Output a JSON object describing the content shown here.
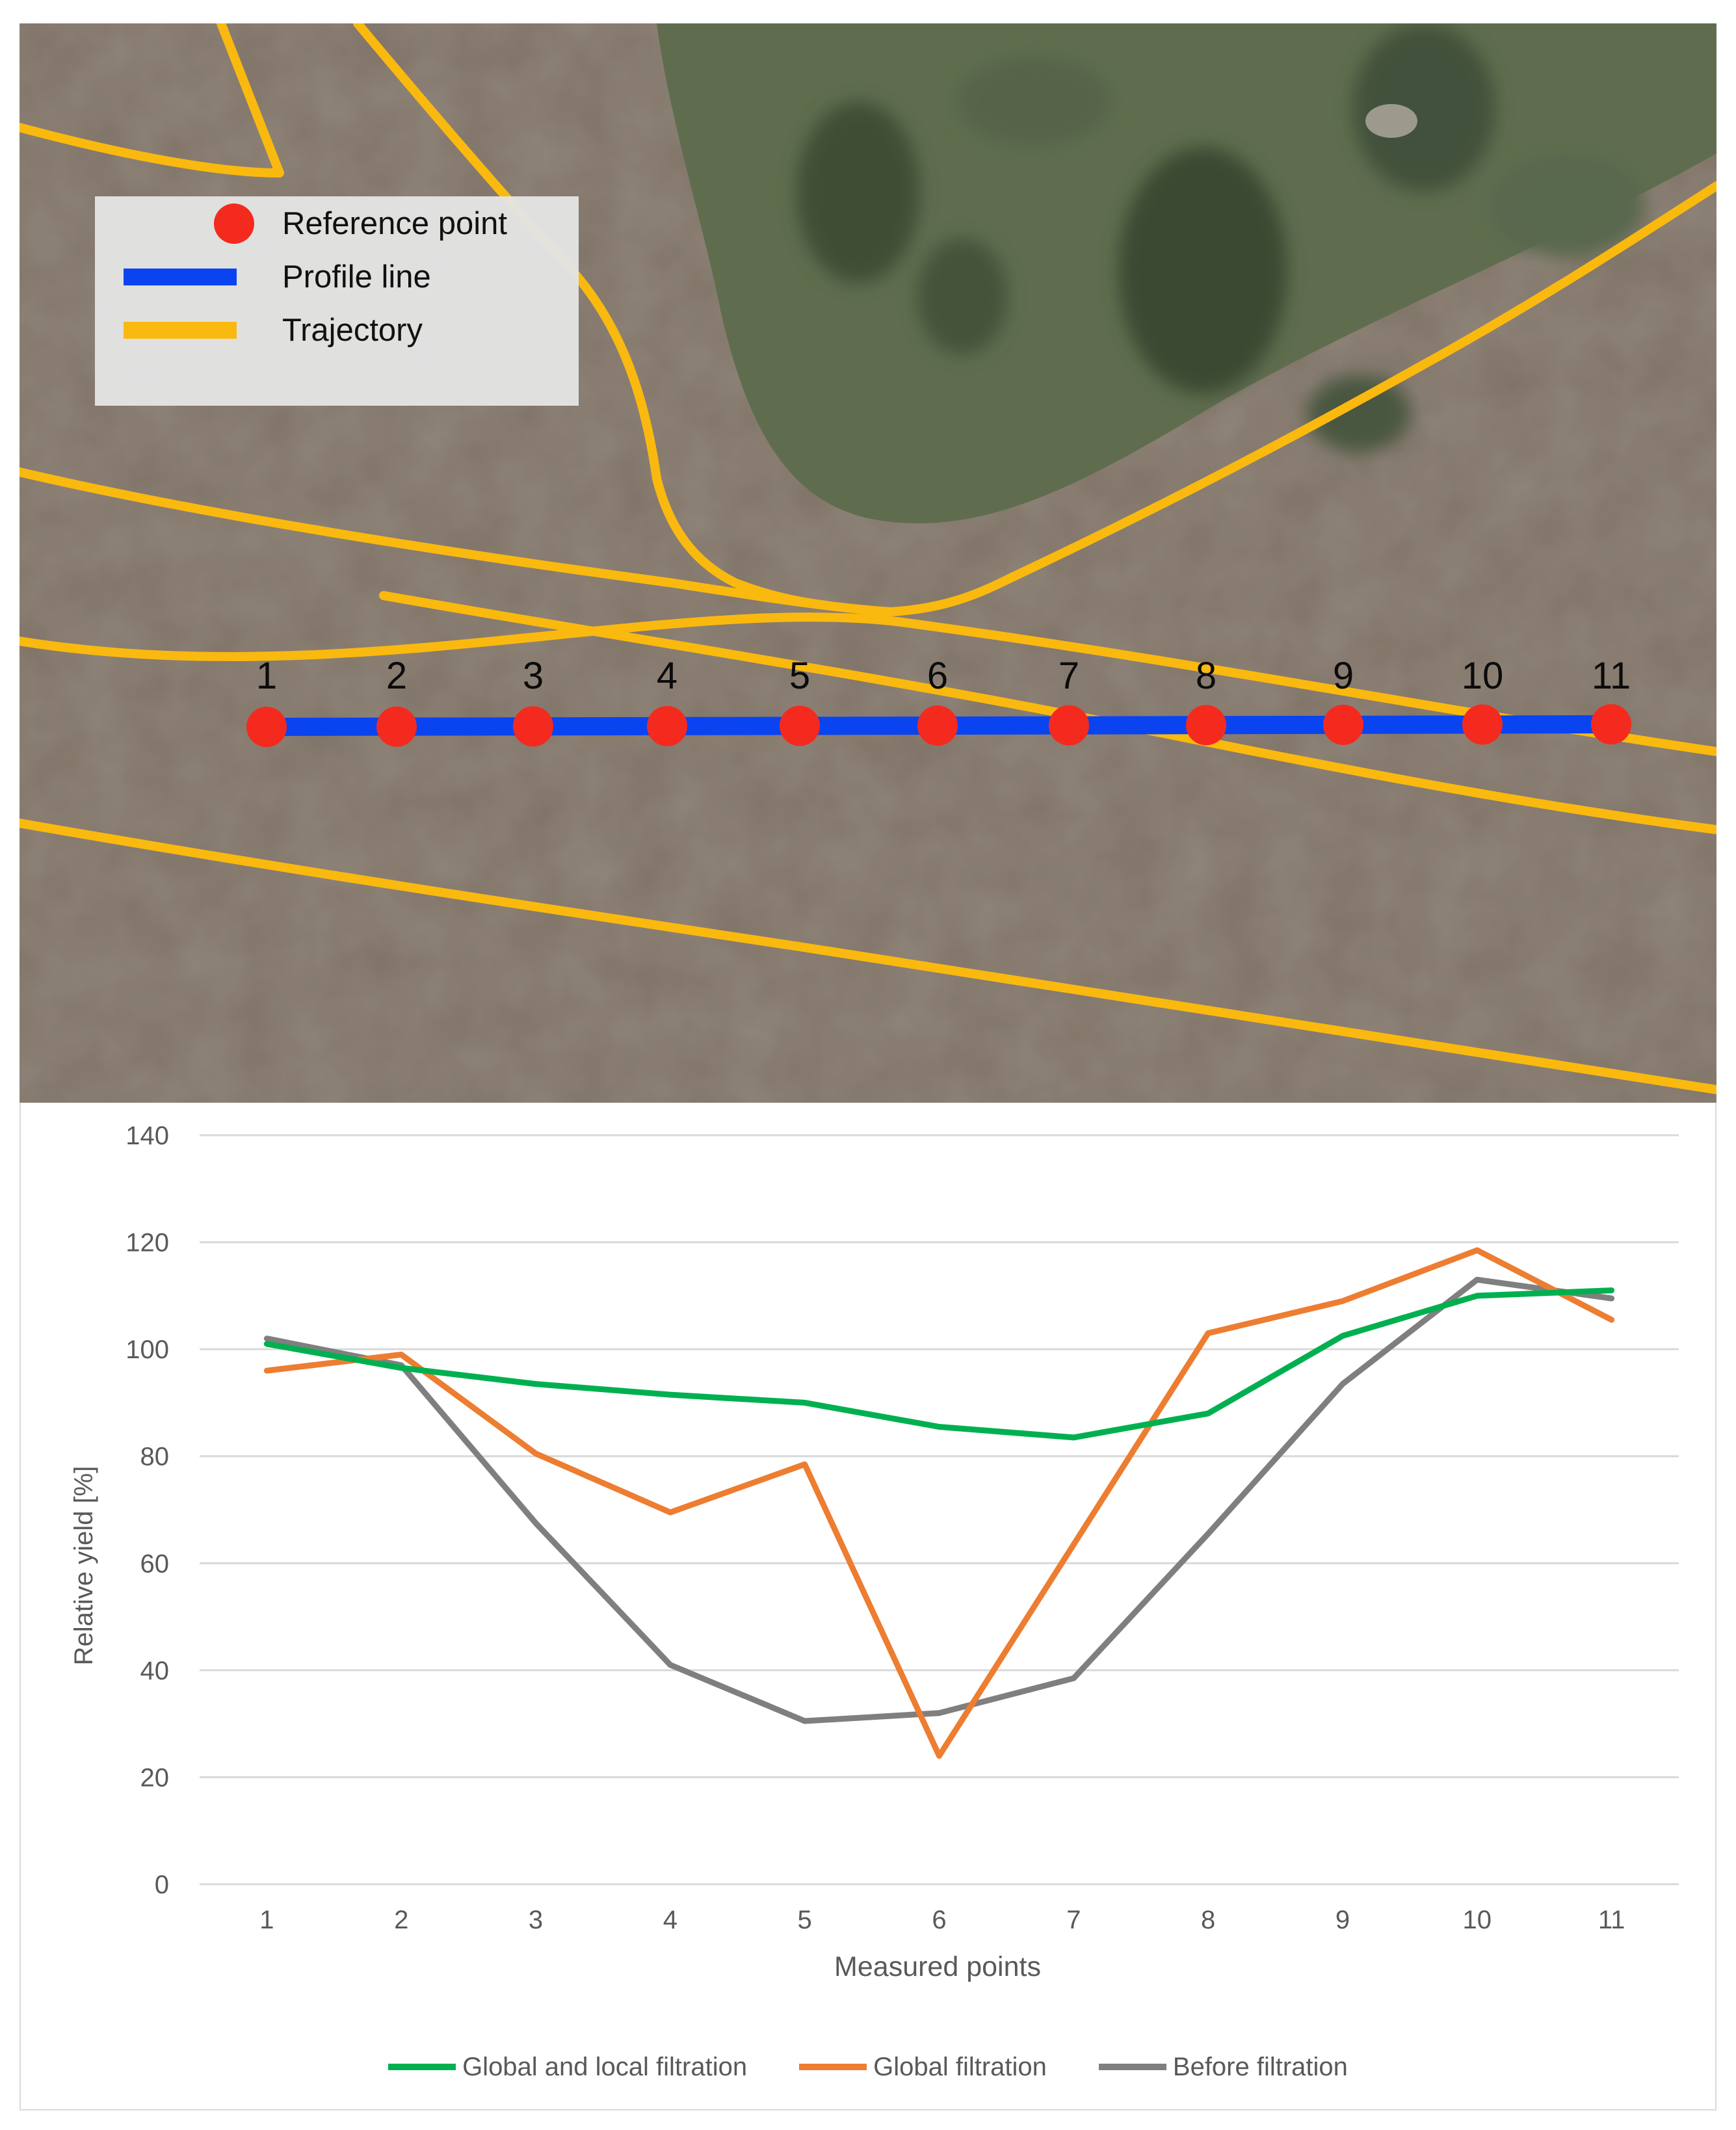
{
  "map": {
    "legend": [
      {
        "key": "reference",
        "label": "Reference point",
        "swatch": "dot",
        "color": "#f42a1f"
      },
      {
        "key": "profile",
        "label": "Profile line",
        "swatch": "line",
        "color": "#0a44f0"
      },
      {
        "key": "trajectory",
        "label": "Trajectory",
        "swatch": "line",
        "color": "#fab90f"
      }
    ],
    "point_labels": [
      "1",
      "2",
      "3",
      "4",
      "5",
      "6",
      "7",
      "8",
      "9",
      "10",
      "11"
    ],
    "colors": {
      "field": "#7f7266",
      "vegetation": "#5f6d4e",
      "trajectory": "#fab90f",
      "profile": "#0a44f0",
      "reference": "#f42a1f"
    }
  },
  "chart_data": {
    "type": "line",
    "title": "",
    "xlabel": "Measured points",
    "ylabel": "Relative yield [%]",
    "categories": [
      "1",
      "2",
      "3",
      "4",
      "5",
      "6",
      "7",
      "8",
      "9",
      "10",
      "11"
    ],
    "ylim": [
      0,
      140
    ],
    "yticks": [
      "0",
      "20",
      "40",
      "60",
      "80",
      "100",
      "120",
      "140"
    ],
    "grid": true,
    "legend_position": "bottom",
    "series": [
      {
        "name": "Global and local filtration",
        "color": "#00b050",
        "values": [
          101,
          96.5,
          93.5,
          91.5,
          90,
          85.5,
          83.5,
          88,
          102.5,
          110,
          111
        ]
      },
      {
        "name": "Global filtration",
        "color": "#ed7d31",
        "values": [
          96,
          99,
          80.5,
          69.5,
          78.5,
          24,
          63.5,
          103,
          109,
          118.5,
          105.5
        ]
      },
      {
        "name": "Before filtration",
        "color": "#7f7f7f",
        "values": [
          102,
          97,
          67.5,
          41,
          30.5,
          32,
          38.5,
          65.5,
          93.5,
          113,
          109.5
        ]
      }
    ]
  }
}
